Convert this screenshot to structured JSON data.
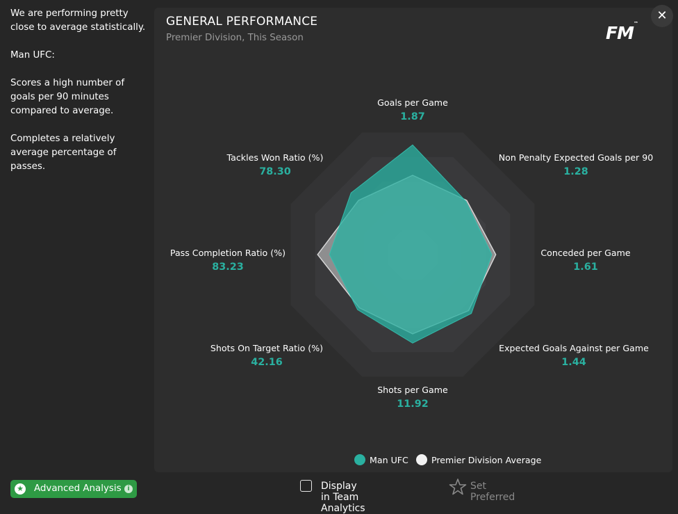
{
  "sidebar": {
    "paragraphs": [
      "We are performing pretty close to average statistically.",
      "Man UFC:",
      "Scores a high number of goals per 90 minutes compared to average.",
      "Completes a relatively average percentage of passes."
    ],
    "advanced_analysis_label": "Advanced Analysis"
  },
  "panel": {
    "title": "GENERAL PERFORMANCE",
    "subtitle": "Premier Division, This Season",
    "logo_text": "FM"
  },
  "chart_data": {
    "type": "radar",
    "axes": [
      {
        "name": "Goals per Game",
        "value": "1.87"
      },
      {
        "name": "Non Penalty Expected Goals per 90",
        "value": "1.28"
      },
      {
        "name": "Conceded per Game",
        "value": "1.61"
      },
      {
        "name": "Expected Goals Against per Game",
        "value": "1.44"
      },
      {
        "name": "Shots per Game",
        "value": "11.92"
      },
      {
        "name": "Shots On Target Ratio (%)",
        "value": "42.16"
      },
      {
        "name": "Pass Completion Ratio (%)",
        "value": "83.23"
      },
      {
        "name": "Tackles Won Ratio (%)",
        "value": "78.30"
      }
    ],
    "rings": 5,
    "series": [
      {
        "name": "Premier Division Average",
        "color": "#d6d6d6",
        "relative": [
          0.6,
          0.58,
          0.63,
          0.6,
          0.6,
          0.57,
          0.72,
          0.58
        ]
      },
      {
        "name": "Man UFC",
        "color": "#2ab0a0",
        "relative": [
          0.83,
          0.57,
          0.6,
          0.63,
          0.67,
          0.59,
          0.63,
          0.66
        ]
      }
    ],
    "legend": [
      {
        "name": "Man UFC",
        "color": "#2ab0a0"
      },
      {
        "name": "Premier Division Average",
        "color": "#f2f2f2"
      }
    ]
  },
  "controls": {
    "display_team_analytics_label": "Display in Team Analytics",
    "set_preferred_label": "Set Preferred",
    "close_icon": "close-icon"
  }
}
